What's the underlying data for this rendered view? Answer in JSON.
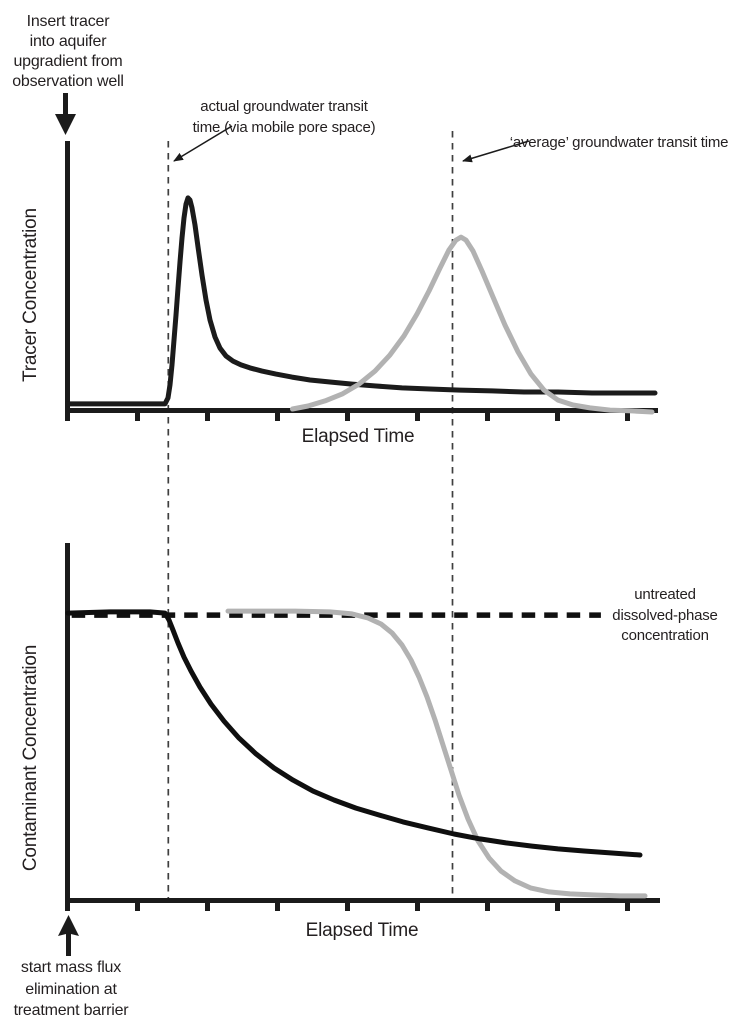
{
  "colors": {
    "ink": "#1b1b1b",
    "gray_curve": "#b2b2b2",
    "text": "#231f20"
  },
  "notes": {
    "insert_tracer": "Insert tracer\ninto aquifer\nupgradient from\nobservation well",
    "start_elimination": "start mass flux\nelimination at\ntreatment barrier"
  },
  "chart_data": [
    {
      "type": "line",
      "title": "",
      "ylabel": "Tracer Concentration",
      "xlabel": "Elapsed Time",
      "x_axis": {
        "label": "Elapsed Time",
        "ticks": [
          1,
          2,
          3,
          4,
          5,
          6,
          7,
          8
        ],
        "range": [
          0,
          8.45
        ],
        "unit": "unlabeled conceptual time"
      },
      "y_axis": {
        "ticks": [],
        "range": [
          0,
          1.05
        ],
        "unit": "unlabeled relative concentration"
      },
      "grid": false,
      "legend": false,
      "annotations": [
        {
          "id": "actual",
          "label": "actual groundwater transit\ntime (via mobile pore space)",
          "marker": "dashed-vertical-line",
          "t": 1.44
        },
        {
          "id": "average",
          "label": "‘average’ groundwater transit time",
          "marker": "dashed-vertical-line",
          "t": 5.5
        }
      ],
      "series": [
        {
          "id": "black-actual-breakthrough",
          "color": "#1b1b1b",
          "points": [
            [
              0.007,
              0.031
            ],
            [
              0.75,
              0.031
            ],
            [
              1.393,
              0.031
            ],
            [
              1.436,
              0.059
            ],
            [
              1.464,
              0.12
            ],
            [
              1.493,
              0.214
            ],
            [
              1.521,
              0.331
            ],
            [
              1.55,
              0.448
            ],
            [
              1.579,
              0.575
            ],
            [
              1.607,
              0.697
            ],
            [
              1.636,
              0.81
            ],
            [
              1.664,
              0.904
            ],
            [
              1.693,
              0.969
            ],
            [
              1.721,
              0.998
            ],
            [
              1.75,
              0.988
            ],
            [
              1.779,
              0.951
            ],
            [
              1.821,
              0.871
            ],
            [
              1.864,
              0.768
            ],
            [
              1.921,
              0.636
            ],
            [
              1.979,
              0.519
            ],
            [
              2.036,
              0.425
            ],
            [
              2.107,
              0.345
            ],
            [
              2.179,
              0.293
            ],
            [
              2.264,
              0.256
            ],
            [
              2.364,
              0.232
            ],
            [
              2.479,
              0.214
            ],
            [
              2.607,
              0.2
            ],
            [
              2.779,
              0.185
            ],
            [
              2.979,
              0.171
            ],
            [
              3.207,
              0.157
            ],
            [
              3.464,
              0.143
            ],
            [
              3.75,
              0.134
            ],
            [
              4.064,
              0.124
            ],
            [
              4.407,
              0.115
            ],
            [
              4.779,
              0.106
            ],
            [
              5.179,
              0.101
            ],
            [
              5.607,
              0.096
            ],
            [
              6.064,
              0.092
            ],
            [
              6.521,
              0.087
            ],
            [
              7.007,
              0.087
            ],
            [
              7.493,
              0.082
            ],
            [
              7.964,
              0.082
            ],
            [
              8.393,
              0.082
            ]
          ]
        },
        {
          "id": "gray-average-breakthrough",
          "color": "#b2b2b2",
          "points": [
            [
              3.214,
              0.007
            ],
            [
              3.436,
              0.021
            ],
            [
              3.679,
              0.045
            ],
            [
              3.921,
              0.077
            ],
            [
              4.164,
              0.124
            ],
            [
              4.393,
              0.185
            ],
            [
              4.607,
              0.261
            ],
            [
              4.807,
              0.35
            ],
            [
              4.993,
              0.453
            ],
            [
              5.164,
              0.561
            ],
            [
              5.321,
              0.669
            ],
            [
              5.45,
              0.754
            ],
            [
              5.55,
              0.8
            ],
            [
              5.621,
              0.814
            ],
            [
              5.693,
              0.8
            ],
            [
              5.793,
              0.749
            ],
            [
              5.921,
              0.655
            ],
            [
              6.079,
              0.533
            ],
            [
              6.25,
              0.401
            ],
            [
              6.436,
              0.275
            ],
            [
              6.621,
              0.171
            ],
            [
              6.807,
              0.096
            ],
            [
              7.007,
              0.049
            ],
            [
              7.221,
              0.026
            ],
            [
              7.464,
              0.012
            ],
            [
              7.75,
              0.002
            ],
            [
              8.064,
              -0.002
            ],
            [
              8.35,
              -0.007
            ]
          ]
        }
      ]
    },
    {
      "type": "line",
      "title": "",
      "ylabel": "Contaminant Concentration",
      "xlabel": "Elapsed Time",
      "x_axis": {
        "label": "Elapsed Time",
        "ticks": [
          1,
          2,
          3,
          4,
          5,
          6,
          7,
          8
        ],
        "range": [
          0,
          8.45
        ],
        "unit": "unlabeled conceptual time"
      },
      "y_axis": {
        "ticks": [],
        "range": [
          0,
          1.1
        ],
        "unit": "unlabeled relative concentration"
      },
      "grid": false,
      "legend": false,
      "reference_line": {
        "label": "untreated\ndissolved-phase\nconcentration",
        "c": 0.991,
        "t_range": [
          0.06,
          7.62
        ],
        "style": "bold dashed"
      },
      "series": [
        {
          "id": "black-actual-decline",
          "color": "#0f0f0f",
          "points": [
            [
              0.007,
              0.998
            ],
            [
              0.607,
              1.002
            ],
            [
              1.179,
              1.002
            ],
            [
              1.393,
              0.998
            ],
            [
              1.45,
              0.974
            ],
            [
              1.507,
              0.939
            ],
            [
              1.579,
              0.894
            ],
            [
              1.664,
              0.845
            ],
            [
              1.764,
              0.797
            ],
            [
              1.893,
              0.741
            ],
            [
              2.05,
              0.682
            ],
            [
              2.236,
              0.623
            ],
            [
              2.45,
              0.564
            ],
            [
              2.693,
              0.509
            ],
            [
              2.95,
              0.46
            ],
            [
              3.221,
              0.418
            ],
            [
              3.507,
              0.38
            ],
            [
              3.807,
              0.349
            ],
            [
              4.121,
              0.321
            ],
            [
              4.45,
              0.297
            ],
            [
              4.793,
              0.273
            ],
            [
              5.15,
              0.252
            ],
            [
              5.521,
              0.231
            ],
            [
              5.893,
              0.214
            ],
            [
              6.264,
              0.2
            ],
            [
              6.636,
              0.189
            ],
            [
              7.007,
              0.179
            ],
            [
              7.379,
              0.172
            ],
            [
              7.779,
              0.165
            ],
            [
              8.179,
              0.158
            ]
          ]
        },
        {
          "id": "gray-average-decline",
          "color": "#b2b2b2",
          "points": [
            [
              2.293,
              1.005
            ],
            [
              2.75,
              1.005
            ],
            [
              3.25,
              1.005
            ],
            [
              3.75,
              1.002
            ],
            [
              4.064,
              0.995
            ],
            [
              4.293,
              0.981
            ],
            [
              4.479,
              0.96
            ],
            [
              4.636,
              0.929
            ],
            [
              4.779,
              0.887
            ],
            [
              4.907,
              0.835
            ],
            [
              5.021,
              0.776
            ],
            [
              5.136,
              0.707
            ],
            [
              5.25,
              0.627
            ],
            [
              5.364,
              0.54
            ],
            [
              5.479,
              0.453
            ],
            [
              5.593,
              0.366
            ],
            [
              5.721,
              0.283
            ],
            [
              5.864,
              0.207
            ],
            [
              6.021,
              0.148
            ],
            [
              6.193,
              0.102
            ],
            [
              6.393,
              0.068
            ],
            [
              6.621,
              0.043
            ],
            [
              6.879,
              0.03
            ],
            [
              7.179,
              0.023
            ],
            [
              7.536,
              0.019
            ],
            [
              7.893,
              0.016
            ],
            [
              8.25,
              0.016
            ]
          ]
        }
      ]
    }
  ]
}
